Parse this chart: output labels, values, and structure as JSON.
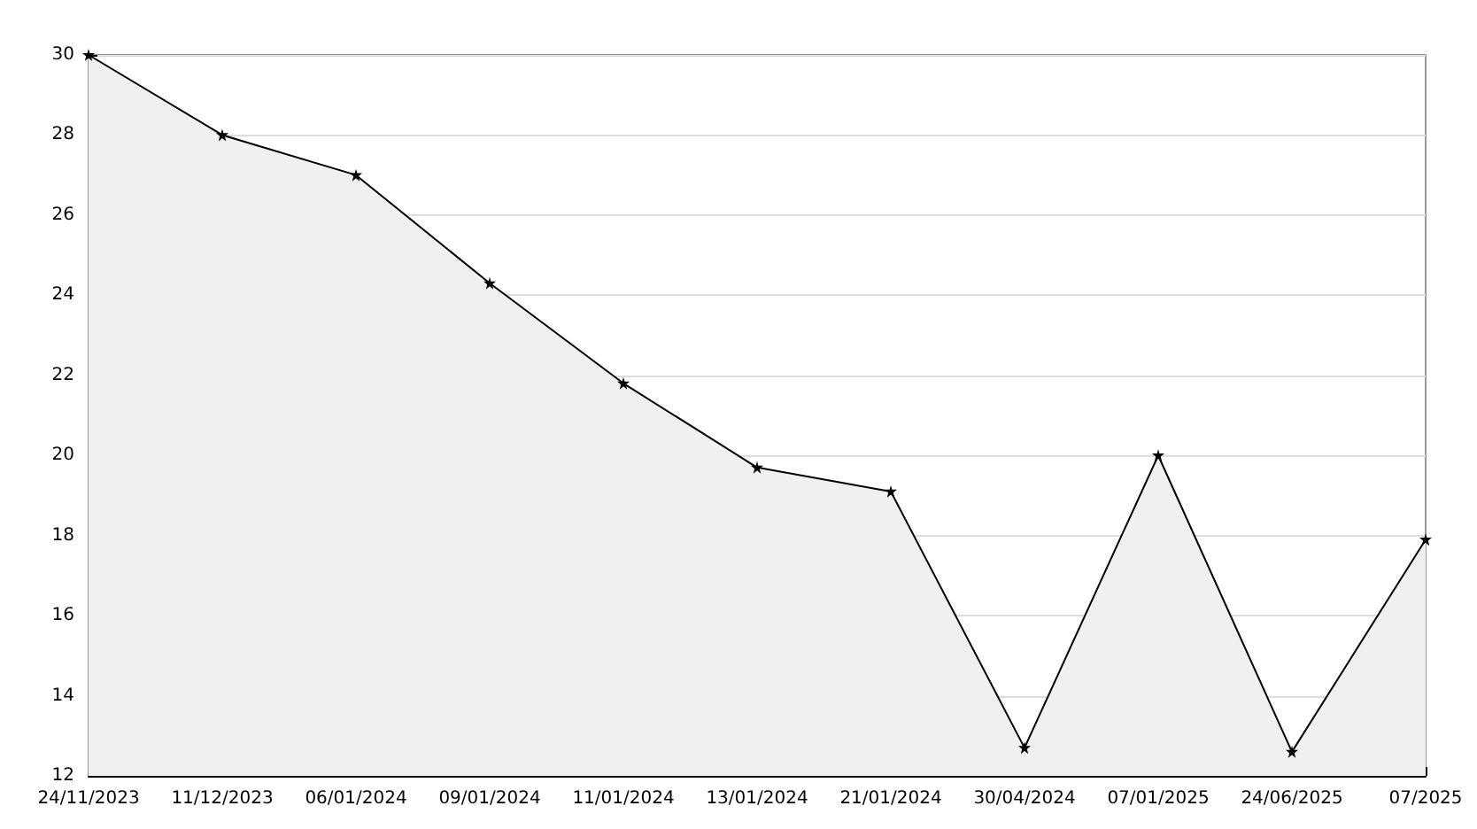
{
  "chart_data": {
    "type": "area",
    "categories": [
      "24/11/2023",
      "11/12/2023",
      "06/01/2024",
      "09/01/2024",
      "11/01/2024",
      "13/01/2024",
      "21/01/2024",
      "30/04/2024",
      "07/01/2025",
      "24/06/2025",
      "07/2025"
    ],
    "series": [
      {
        "color": "#000000",
        "values": [
          30,
          28,
          27,
          24.3,
          21.8,
          19.7,
          19.1,
          12.7,
          20,
          12.6,
          17.9
        ]
      }
    ],
    "ylim": [
      12,
      30
    ],
    "yticks": [
      12,
      14,
      16,
      18,
      20,
      22,
      24,
      26,
      28,
      30
    ],
    "grid": "y",
    "marker": "star"
  }
}
